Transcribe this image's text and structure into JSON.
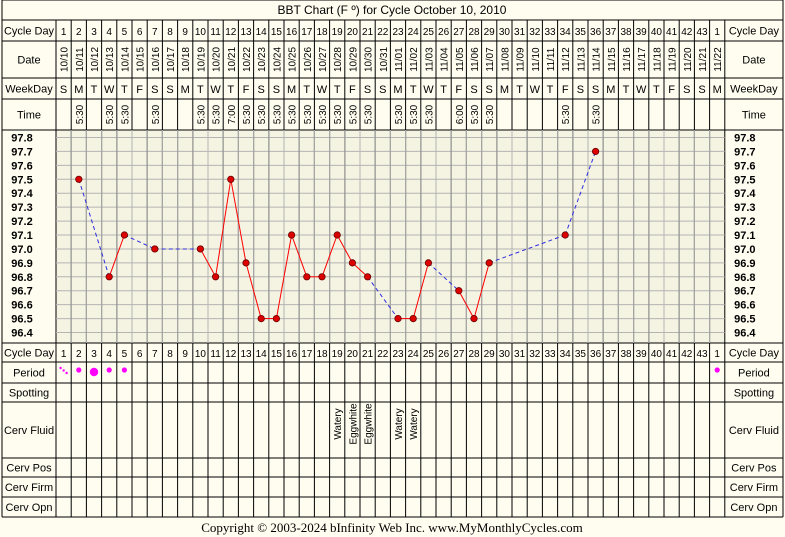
{
  "title": "BBT Chart (F º) for Cycle October 10, 2010",
  "copyright": "Copyright © 2003-2024 bInfinity Web Inc.      www.MyMonthlyCycles.com",
  "row_labels": {
    "cycle_day": "Cycle Day",
    "date": "Date",
    "weekday": "WeekDay",
    "time": "Time",
    "period": "Period",
    "spotting": "Spotting",
    "cerv_fluid": "Cerv Fluid",
    "cerv_pos": "Cerv Pos",
    "cerv_firm": "Cerv Firm",
    "cerv_opn": "Cerv Opn"
  },
  "colors": {
    "background": "#fffdf0",
    "grid": "#b4b4b4",
    "solid_line": "#ff0000",
    "dashed_line": "#2f2fe0",
    "point_fill": "#dd0000",
    "period_dot": "#ff00ff"
  },
  "table": {
    "days": [
      "1",
      "2",
      "3",
      "4",
      "5",
      "6",
      "7",
      "8",
      "9",
      "10",
      "11",
      "12",
      "13",
      "14",
      "15",
      "16",
      "17",
      "18",
      "19",
      "20",
      "21",
      "22",
      "23",
      "24",
      "25",
      "26",
      "27",
      "28",
      "29",
      "30",
      "31",
      "32",
      "33",
      "34",
      "35",
      "36",
      "37",
      "38",
      "39",
      "40",
      "41",
      "42",
      "43",
      "1"
    ],
    "dates": [
      "10/10",
      "10/11",
      "10/12",
      "10/13",
      "10/14",
      "10/15",
      "10/16",
      "10/17",
      "10/18",
      "10/19",
      "10/20",
      "10/21",
      "10/22",
      "10/23",
      "10/24",
      "10/25",
      "10/26",
      "10/27",
      "10/28",
      "10/29",
      "10/30",
      "10/31",
      "11/01",
      "11/02",
      "11/03",
      "11/04",
      "11/05",
      "11/06",
      "11/07",
      "11/08",
      "11/09",
      "11/10",
      "11/11",
      "11/12",
      "11/13",
      "11/14",
      "11/15",
      "11/16",
      "11/17",
      "11/18",
      "11/19",
      "11/20",
      "11/21",
      "11/22"
    ],
    "weekdays": [
      "S",
      "M",
      "T",
      "W",
      "T",
      "F",
      "S",
      "S",
      "M",
      "T",
      "W",
      "T",
      "F",
      "S",
      "S",
      "M",
      "T",
      "W",
      "T",
      "F",
      "S",
      "S",
      "M",
      "T",
      "W",
      "T",
      "F",
      "S",
      "S",
      "M",
      "T",
      "W",
      "T",
      "F",
      "S",
      "S",
      "M",
      "T",
      "W",
      "T",
      "F",
      "S",
      "S",
      "M"
    ],
    "times": [
      "",
      "5:30",
      "",
      "5:30",
      "5:30",
      "",
      "5:30",
      "",
      "",
      "5:30",
      "5:30",
      "7:00",
      "5:30",
      "5:30",
      "5:30",
      "5:30",
      "5:30",
      "5:30",
      "5:30",
      "5:30",
      "5:30",
      "",
      "5:30",
      "5:30",
      "5:30",
      "",
      "6:00",
      "5:30",
      "5:30",
      "",
      "",
      "",
      "",
      "5:30",
      "",
      "5:30",
      "",
      "",
      "",
      "",
      "",
      "",
      "",
      ""
    ],
    "period": [
      "spot",
      "dot",
      "big",
      "dot",
      "dot",
      "",
      "",
      "",
      "",
      "",
      "",
      "",
      "",
      "",
      "",
      "",
      "",
      "",
      "",
      "",
      "",
      "",
      "",
      "",
      "",
      "",
      "",
      "",
      "",
      "",
      "",
      "",
      "",
      "",
      "",
      "",
      "",
      "",
      "",
      "",
      "",
      "",
      "",
      "dot"
    ],
    "cerv_fluid": [
      "",
      "",
      "",
      "",
      "",
      "",
      "",
      "",
      "",
      "",
      "",
      "",
      "",
      "",
      "",
      "",
      "",
      "",
      "Watery",
      "Eggwhite",
      "Eggwhite",
      "",
      "Watery",
      "Watery",
      "",
      "",
      "",
      "",
      "",
      "",
      "",
      "",
      "",
      "",
      "",
      "",
      "",
      "",
      "",
      "",
      "",
      "",
      "",
      ""
    ]
  },
  "chart_data": {
    "type": "line",
    "title": "BBT Chart (F º) for Cycle October 10, 2010",
    "xlabel": "Cycle Day",
    "ylabel": "",
    "ylim": [
      96.4,
      97.8
    ],
    "yticks": [
      "97.8",
      "97.7",
      "97.6",
      "97.5",
      "97.4",
      "97.3",
      "97.2",
      "97.1",
      "97.0",
      "96.9",
      "96.8",
      "96.7",
      "96.6",
      "96.5",
      "96.4"
    ],
    "grid": true,
    "x": [
      2,
      4,
      5,
      7,
      10,
      11,
      12,
      13,
      14,
      15,
      16,
      17,
      18,
      19,
      20,
      21,
      23,
      24,
      25,
      27,
      28,
      29,
      34,
      36
    ],
    "values": [
      97.5,
      96.8,
      97.1,
      97.0,
      97.0,
      96.8,
      97.5,
      96.9,
      96.5,
      96.5,
      97.1,
      96.8,
      96.8,
      97.1,
      96.9,
      96.8,
      96.5,
      96.5,
      96.9,
      96.7,
      96.5,
      96.9,
      97.1,
      97.7
    ],
    "connections": [
      "dashed",
      "solid",
      "dashed",
      "dashed",
      "solid",
      "solid",
      "solid",
      "solid",
      "solid",
      "solid",
      "solid",
      "solid",
      "solid",
      "solid",
      "solid",
      "dashed",
      "solid",
      "solid",
      "dashed",
      "solid",
      "solid",
      "dashed",
      "dashed"
    ]
  }
}
